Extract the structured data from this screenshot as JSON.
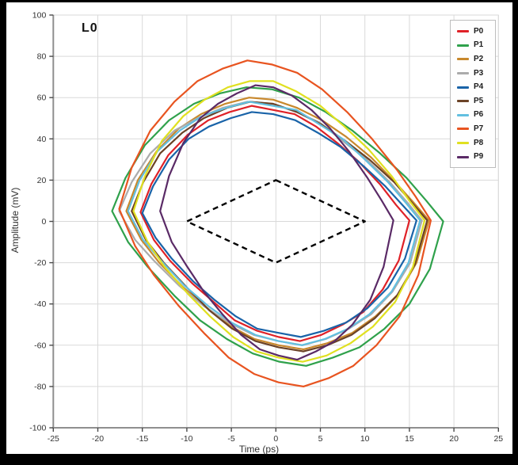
{
  "window": {
    "frame_color": "#000000",
    "panel_background": "#ffffff",
    "grid_color": "#d9d9d9",
    "spine_color": "#8f8f8f",
    "tick_color": "#4a4a4a",
    "tick_label_color": "#333333"
  },
  "chart_data": {
    "type": "line",
    "subtype": "eye-diagram-contours",
    "title": "L0",
    "xlabel": "Time (ps)",
    "ylabel": "Amplitude (mV)",
    "xlim": [
      -25,
      25
    ],
    "ylim": [
      -100,
      100
    ],
    "xticks": [
      -25,
      -20,
      -15,
      -10,
      -5,
      0,
      5,
      10,
      15,
      20,
      25
    ],
    "yticks": [
      -100,
      -80,
      -60,
      -40,
      -20,
      0,
      20,
      40,
      60,
      80,
      100
    ],
    "grid": true,
    "legend_position": "top-right",
    "mask": {
      "style": "dashed",
      "color": "#000000",
      "points": [
        [
          0,
          20
        ],
        [
          10,
          0
        ],
        [
          0,
          -20
        ],
        [
          -10,
          0
        ]
      ]
    },
    "series": [
      {
        "name": "P0",
        "color": "#df2127",
        "points": [
          [
            -15.2,
            4.5
          ],
          [
            -14.0,
            18
          ],
          [
            -12.1,
            32
          ],
          [
            -9.9,
            42
          ],
          [
            -7.6,
            49
          ],
          [
            -5.2,
            53
          ],
          [
            -2.7,
            56
          ],
          [
            -0.3,
            54
          ],
          [
            2.1,
            52
          ],
          [
            4.5,
            46
          ],
          [
            6.9,
            38
          ],
          [
            9.3,
            29
          ],
          [
            11.7,
            18
          ],
          [
            13.5,
            8
          ],
          [
            15.0,
            0.5
          ],
          [
            13.8,
            -19
          ],
          [
            12.0,
            -33
          ],
          [
            9.8,
            -44
          ],
          [
            7.5,
            -50
          ],
          [
            5.1,
            -55
          ],
          [
            2.7,
            -58
          ],
          [
            0.3,
            -56
          ],
          [
            -2.1,
            -53
          ],
          [
            -4.6,
            -48
          ],
          [
            -7.0,
            -39
          ],
          [
            -9.4,
            -30
          ],
          [
            -11.9,
            -19
          ],
          [
            -13.7,
            -9
          ]
        ]
      },
      {
        "name": "P1",
        "color": "#2fa14b",
        "points": [
          [
            -18.4,
            5
          ],
          [
            -16.9,
            21
          ],
          [
            -14.7,
            37
          ],
          [
            -12.0,
            49
          ],
          [
            -9.2,
            57
          ],
          [
            -6.3,
            62
          ],
          [
            -3.3,
            65
          ],
          [
            -0.4,
            64
          ],
          [
            2.6,
            60
          ],
          [
            5.6,
            53
          ],
          [
            8.6,
            44
          ],
          [
            11.7,
            33
          ],
          [
            14.7,
            21
          ],
          [
            16.9,
            10
          ],
          [
            18.8,
            0
          ],
          [
            17.3,
            -23
          ],
          [
            15.0,
            -40
          ],
          [
            12.2,
            -52
          ],
          [
            9.4,
            -61
          ],
          [
            6.4,
            -66
          ],
          [
            3.4,
            -70
          ],
          [
            0.4,
            -68
          ],
          [
            -2.6,
            -64
          ],
          [
            -5.5,
            -57
          ],
          [
            -8.5,
            -48
          ],
          [
            -11.4,
            -36
          ],
          [
            -14.4,
            -22
          ],
          [
            -16.6,
            -10
          ]
        ]
      },
      {
        "name": "P2",
        "color": "#c8882c",
        "points": [
          [
            -16.8,
            5
          ],
          [
            -15.5,
            20
          ],
          [
            -13.4,
            34
          ],
          [
            -10.9,
            45
          ],
          [
            -8.4,
            52
          ],
          [
            -5.7,
            57
          ],
          [
            -3.0,
            60
          ],
          [
            -0.3,
            59
          ],
          [
            2.4,
            55
          ],
          [
            5.2,
            49
          ],
          [
            7.9,
            41
          ],
          [
            10.7,
            31
          ],
          [
            13.4,
            19
          ],
          [
            15.5,
            9
          ],
          [
            17.2,
            0.5
          ],
          [
            15.8,
            -20
          ],
          [
            13.8,
            -35
          ],
          [
            11.2,
            -46
          ],
          [
            8.6,
            -54
          ],
          [
            5.8,
            -59
          ],
          [
            3.1,
            -62
          ],
          [
            0.3,
            -60
          ],
          [
            -2.4,
            -57
          ],
          [
            -5.0,
            -51
          ],
          [
            -7.7,
            -42
          ],
          [
            -10.4,
            -32
          ],
          [
            -13.1,
            -20
          ],
          [
            -15.1,
            -9
          ]
        ]
      },
      {
        "name": "P3",
        "color": "#ababab",
        "points": [
          [
            -17.6,
            5
          ],
          [
            -16.2,
            19
          ],
          [
            -14.1,
            33
          ],
          [
            -11.4,
            44
          ],
          [
            -8.8,
            50
          ],
          [
            -6.0,
            55
          ],
          [
            -3.2,
            58
          ],
          [
            -0.4,
            57
          ],
          [
            2.3,
            53
          ],
          [
            4.9,
            48
          ],
          [
            7.5,
            39
          ],
          [
            10.2,
            30
          ],
          [
            12.8,
            19
          ],
          [
            14.8,
            9
          ],
          [
            16.4,
            0.5
          ],
          [
            15.1,
            -20
          ],
          [
            13.1,
            -34
          ],
          [
            10.7,
            -45
          ],
          [
            8.2,
            -52
          ],
          [
            5.6,
            -57
          ],
          [
            3.0,
            -60
          ],
          [
            0.3,
            -58
          ],
          [
            -2.5,
            -55
          ],
          [
            -5.3,
            -49
          ],
          [
            -8.1,
            -41
          ],
          [
            -10.9,
            -31
          ],
          [
            -13.7,
            -19
          ],
          [
            -15.8,
            -9
          ]
        ]
      },
      {
        "name": "P4",
        "color": "#1963a8",
        "points": [
          [
            -15.0,
            4
          ],
          [
            -13.8,
            17
          ],
          [
            -12.0,
            30
          ],
          [
            -9.8,
            40
          ],
          [
            -7.5,
            46
          ],
          [
            -5.1,
            50
          ],
          [
            -2.7,
            53
          ],
          [
            -0.3,
            52
          ],
          [
            2.2,
            49
          ],
          [
            4.7,
            43
          ],
          [
            7.3,
            36
          ],
          [
            9.8,
            27
          ],
          [
            12.3,
            17
          ],
          [
            14.2,
            8
          ],
          [
            15.8,
            0.5
          ],
          [
            14.5,
            -18
          ],
          [
            12.6,
            -32
          ],
          [
            10.3,
            -42
          ],
          [
            7.9,
            -49
          ],
          [
            5.4,
            -53
          ],
          [
            2.8,
            -56
          ],
          [
            0.3,
            -54
          ],
          [
            -2.1,
            -52
          ],
          [
            -4.5,
            -46
          ],
          [
            -6.9,
            -38
          ],
          [
            -9.3,
            -29
          ],
          [
            -11.7,
            -18
          ],
          [
            -13.5,
            -8
          ]
        ]
      },
      {
        "name": "P5",
        "color": "#6b4226",
        "points": [
          [
            -16.2,
            5
          ],
          [
            -14.9,
            19
          ],
          [
            -13.0,
            33
          ],
          [
            -10.5,
            43
          ],
          [
            -8.1,
            50
          ],
          [
            -5.5,
            55
          ],
          [
            -2.9,
            58
          ],
          [
            -0.3,
            57
          ],
          [
            2.4,
            53
          ],
          [
            5.1,
            47
          ],
          [
            7.8,
            39
          ],
          [
            10.5,
            30
          ],
          [
            13.3,
            19
          ],
          [
            15.3,
            9
          ],
          [
            17.0,
            0.5
          ],
          [
            15.6,
            -21
          ],
          [
            13.6,
            -36
          ],
          [
            11.1,
            -47
          ],
          [
            8.5,
            -55
          ],
          [
            5.8,
            -60
          ],
          [
            3.1,
            -63
          ],
          [
            0.3,
            -61
          ],
          [
            -2.3,
            -58
          ],
          [
            -4.9,
            -52
          ],
          [
            -7.5,
            -43
          ],
          [
            -10.0,
            -32
          ],
          [
            -12.6,
            -20
          ],
          [
            -14.6,
            -9
          ]
        ]
      },
      {
        "name": "P6",
        "color": "#62bfe0",
        "points": [
          [
            -16.6,
            5
          ],
          [
            -15.3,
            20
          ],
          [
            -13.3,
            34
          ],
          [
            -10.8,
            44
          ],
          [
            -8.3,
            51
          ],
          [
            -5.6,
            55
          ],
          [
            -3.0,
            58
          ],
          [
            -0.3,
            56
          ],
          [
            2.3,
            54
          ],
          [
            4.9,
            47
          ],
          [
            7.5,
            40
          ],
          [
            10.0,
            30
          ],
          [
            12.6,
            19
          ],
          [
            14.6,
            9
          ],
          [
            16.2,
            0.5
          ],
          [
            14.9,
            -20
          ],
          [
            13.0,
            -34
          ],
          [
            10.5,
            -45
          ],
          [
            8.1,
            -52
          ],
          [
            5.5,
            -57
          ],
          [
            2.9,
            -60
          ],
          [
            0.3,
            -58
          ],
          [
            -2.3,
            -55
          ],
          [
            -5.0,
            -49
          ],
          [
            -7.6,
            -41
          ],
          [
            -10.3,
            -31
          ],
          [
            -12.9,
            -19
          ],
          [
            -14.9,
            -9
          ]
        ]
      },
      {
        "name": "P7",
        "color": "#e85420",
        "points": [
          [
            -17.6,
            6
          ],
          [
            -16.2,
            26
          ],
          [
            -14.1,
            44
          ],
          [
            -11.4,
            58
          ],
          [
            -8.8,
            68
          ],
          [
            -6.0,
            74
          ],
          [
            -3.2,
            78
          ],
          [
            -0.4,
            76
          ],
          [
            2.4,
            72
          ],
          [
            5.2,
            64
          ],
          [
            8.0,
            53
          ],
          [
            10.8,
            40
          ],
          [
            13.6,
            25
          ],
          [
            15.7,
            12
          ],
          [
            17.4,
            0.5
          ],
          [
            16.0,
            -26
          ],
          [
            13.9,
            -46
          ],
          [
            11.3,
            -60
          ],
          [
            8.7,
            -70
          ],
          [
            5.9,
            -76
          ],
          [
            3.1,
            -80
          ],
          [
            0.3,
            -78
          ],
          [
            -2.4,
            -74
          ],
          [
            -5.3,
            -66
          ],
          [
            -8.1,
            -54
          ],
          [
            -10.9,
            -41
          ],
          [
            -13.7,
            -26
          ],
          [
            -15.8,
            -12
          ]
        ]
      },
      {
        "name": "P8",
        "color": "#e0e020",
        "points": [
          [
            -16.0,
            5
          ],
          [
            -14.7,
            22
          ],
          [
            -12.8,
            39
          ],
          [
            -10.4,
            51
          ],
          [
            -8.0,
            59
          ],
          [
            -5.4,
            65
          ],
          [
            -2.9,
            68
          ],
          [
            -0.3,
            68
          ],
          [
            2.3,
            63
          ],
          [
            5.0,
            56
          ],
          [
            7.7,
            46
          ],
          [
            10.4,
            35
          ],
          [
            13.0,
            22
          ],
          [
            15.0,
            10
          ],
          [
            16.7,
            0.5
          ],
          [
            15.4,
            -22
          ],
          [
            13.4,
            -39
          ],
          [
            10.9,
            -51
          ],
          [
            8.4,
            -59
          ],
          [
            5.7,
            -65
          ],
          [
            3.0,
            -68
          ],
          [
            0.3,
            -66
          ],
          [
            -2.2,
            -63
          ],
          [
            -4.8,
            -56
          ],
          [
            -7.4,
            -46
          ],
          [
            -9.9,
            -35
          ],
          [
            -12.5,
            -22
          ],
          [
            -14.4,
            -10
          ]
        ]
      },
      {
        "name": "P9",
        "color": "#5a2a66",
        "points": [
          [
            -13.0,
            5
          ],
          [
            -12.0,
            22
          ],
          [
            -10.4,
            38
          ],
          [
            -8.5,
            50
          ],
          [
            -6.5,
            57
          ],
          [
            -4.4,
            62
          ],
          [
            -2.3,
            66
          ],
          [
            -0.3,
            65
          ],
          [
            1.8,
            61
          ],
          [
            4.0,
            54
          ],
          [
            6.1,
            45
          ],
          [
            8.2,
            34
          ],
          [
            10.3,
            21
          ],
          [
            11.9,
            10
          ],
          [
            13.2,
            0.5
          ],
          [
            12.1,
            -22
          ],
          [
            10.6,
            -38
          ],
          [
            8.6,
            -50
          ],
          [
            6.6,
            -58
          ],
          [
            4.5,
            -63
          ],
          [
            2.4,
            -67
          ],
          [
            0.3,
            -65
          ],
          [
            -1.8,
            -62
          ],
          [
            -3.9,
            -55
          ],
          [
            -6.0,
            -45
          ],
          [
            -8.1,
            -34
          ],
          [
            -10.1,
            -21
          ],
          [
            -11.7,
            -10
          ]
        ]
      }
    ]
  }
}
